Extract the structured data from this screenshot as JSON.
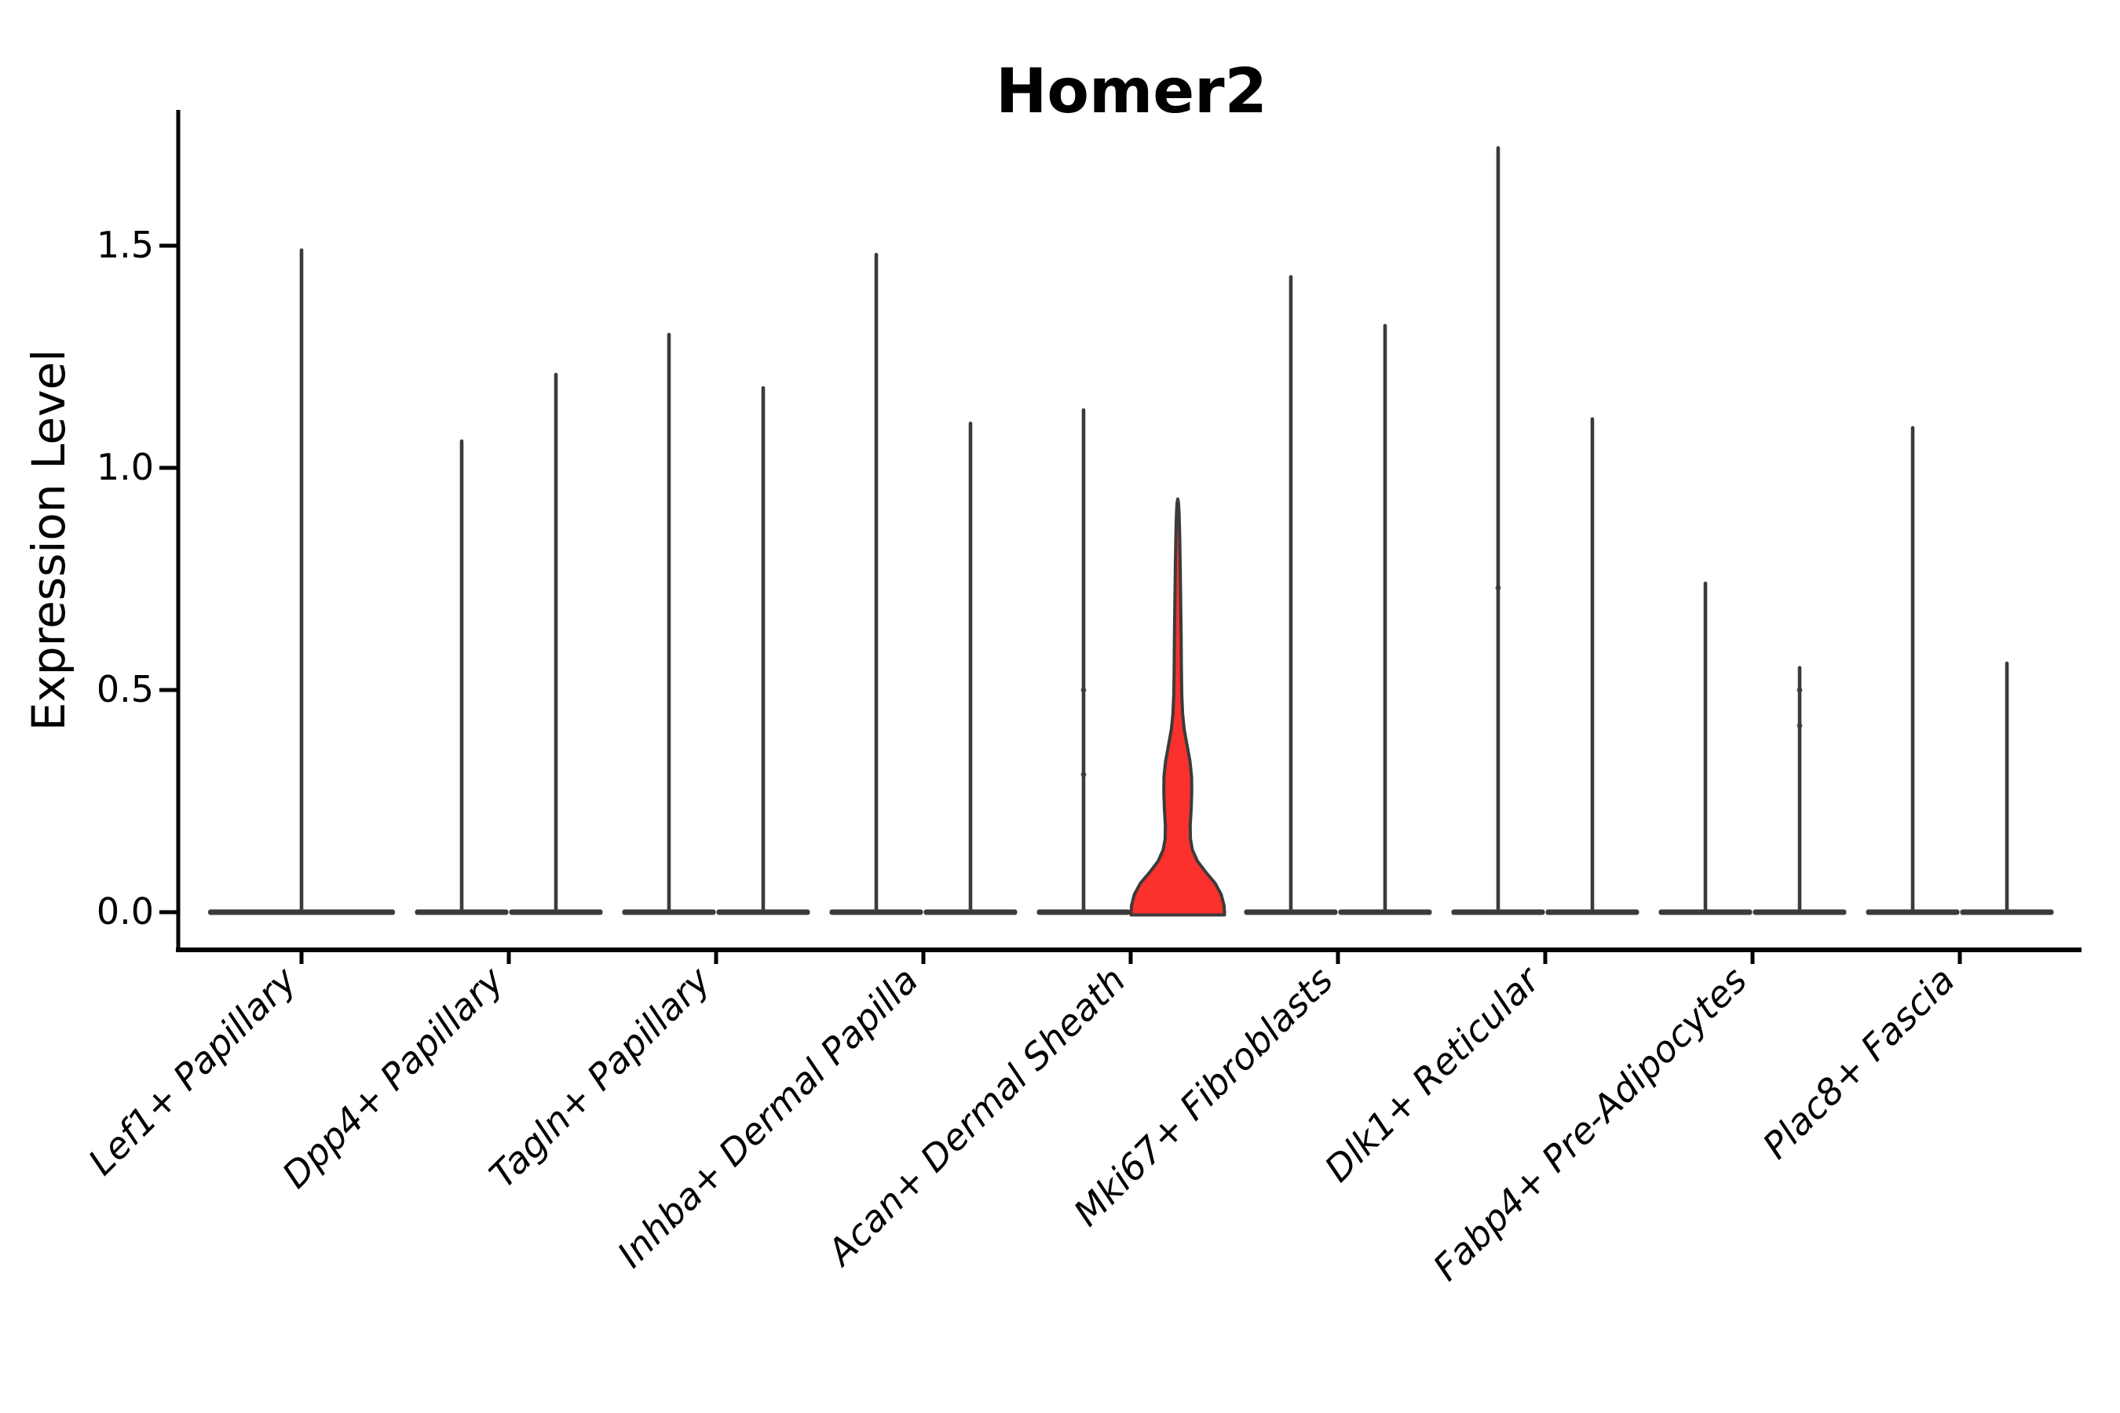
{
  "chart_data": {
    "type": "violin",
    "title": "Homer2",
    "ylabel": "Expression Level",
    "xlabel": "",
    "yticks": [
      0.0,
      0.5,
      1.0,
      1.5
    ],
    "ylim": [
      -0.09,
      1.81
    ],
    "grid": false,
    "legend": "none",
    "outline_color": "#3b3b3b",
    "axis_color": "#000000",
    "highlight_fill": "#fa312d",
    "categories": [
      "Lef1+ Papillary",
      "Dpp4+ Papillary",
      "Tagln+ Papillary",
      "Inhba+ Dermal Papilla",
      "Acan+ Dermal Sheath",
      "Mki67+ Fibroblasts",
      "Dlk1+ Reticular",
      "Fabp4+ Pre-Adipocytes",
      "Plac8+ Fascia"
    ],
    "violins": [
      {
        "category": "Lef1+ Papillary",
        "position": "center",
        "max": 1.49,
        "highlighted": false
      },
      {
        "category": "Dpp4+ Papillary",
        "position": "left",
        "max": 1.06,
        "highlighted": false
      },
      {
        "category": "Dpp4+ Papillary",
        "position": "right",
        "max": 1.21,
        "highlighted": false
      },
      {
        "category": "Tagln+ Papillary",
        "position": "left",
        "max": 1.3,
        "highlighted": false
      },
      {
        "category": "Tagln+ Papillary",
        "position": "right",
        "max": 1.18,
        "highlighted": false
      },
      {
        "category": "Inhba+ Dermal Papilla",
        "position": "left",
        "max": 1.48,
        "highlighted": false
      },
      {
        "category": "Inhba+ Dermal Papilla",
        "position": "right",
        "max": 1.1,
        "highlighted": false
      },
      {
        "category": "Acan+ Dermal Sheath",
        "position": "left",
        "max": 1.13,
        "highlighted": false,
        "dots": [
          0.5,
          0.31
        ]
      },
      {
        "category": "Acan+ Dermal Sheath",
        "position": "right",
        "max": 0.93,
        "highlighted": true,
        "profile": [
          [
            0.0,
            1.0
          ],
          [
            0.015,
            0.99
          ],
          [
            0.04,
            0.93
          ],
          [
            0.065,
            0.8
          ],
          [
            0.09,
            0.6
          ],
          [
            0.115,
            0.42
          ],
          [
            0.14,
            0.315
          ],
          [
            0.165,
            0.27
          ],
          [
            0.195,
            0.265
          ],
          [
            0.23,
            0.285
          ],
          [
            0.27,
            0.3
          ],
          [
            0.305,
            0.295
          ],
          [
            0.34,
            0.26
          ],
          [
            0.375,
            0.2
          ],
          [
            0.41,
            0.14
          ],
          [
            0.445,
            0.105
          ],
          [
            0.49,
            0.085
          ],
          [
            0.55,
            0.078
          ],
          [
            0.62,
            0.072
          ],
          [
            0.7,
            0.063
          ],
          [
            0.78,
            0.052
          ],
          [
            0.85,
            0.04
          ],
          [
            0.895,
            0.028
          ],
          [
            0.92,
            0.016
          ],
          [
            0.93,
            0.0
          ]
        ]
      },
      {
        "category": "Mki67+ Fibroblasts",
        "position": "left",
        "max": 1.43,
        "highlighted": false
      },
      {
        "category": "Mki67+ Fibroblasts",
        "position": "right",
        "max": 1.32,
        "highlighted": false
      },
      {
        "category": "Dlk1+ Reticular",
        "position": "left",
        "max": 1.72,
        "highlighted": false,
        "dots": [
          0.73
        ]
      },
      {
        "category": "Dlk1+ Reticular",
        "position": "right",
        "max": 1.11,
        "highlighted": false
      },
      {
        "category": "Fabp4+ Pre-Adipocytes",
        "position": "left",
        "max": 0.74,
        "highlighted": false
      },
      {
        "category": "Fabp4+ Pre-Adipocytes",
        "position": "right",
        "max": 0.55,
        "highlighted": false,
        "dots": [
          0.5,
          0.42
        ]
      },
      {
        "category": "Plac8+ Fascia",
        "position": "left",
        "max": 1.09,
        "highlighted": false
      },
      {
        "category": "Plac8+ Fascia",
        "position": "right",
        "max": 0.56,
        "highlighted": false
      }
    ]
  }
}
